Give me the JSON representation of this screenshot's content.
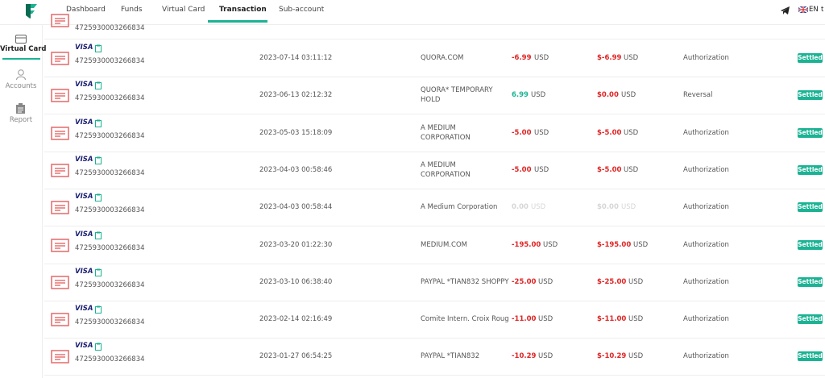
{
  "nav": {
    "tabs": [
      "Dashboard",
      "Funds",
      "Virtual Card",
      "Transaction",
      "Sub-account"
    ],
    "active_tab": 3,
    "language": "EN",
    "user": "t"
  },
  "sidebar": {
    "items": [
      "Virtual Card",
      "Accounts",
      "Report"
    ],
    "active_item": 0
  },
  "table": {
    "partial_row": {
      "card_number": "4725930003266834"
    },
    "rows": [
      {
        "brand": "VISA",
        "card_number": "4725930003266834",
        "date": "2023-07-14 03:11:12",
        "merchant": [
          "QUORA.COM"
        ],
        "amount": "-6.99",
        "amount_currency": "USD",
        "amount_color": "#e02424",
        "balance": "$-6.99",
        "balance_currency": "USD",
        "balance_color": "#e02424",
        "type": "Authorization",
        "status": "Settled"
      },
      {
        "brand": "VISA",
        "card_number": "4725930003266834",
        "date": "2023-06-13 02:12:32",
        "merchant": [
          "QUORA* TEMPORARY",
          "HOLD"
        ],
        "amount": "6.99",
        "amount_currency": "USD",
        "amount_color": "#1bb394",
        "balance": "$0.00",
        "balance_currency": "USD",
        "balance_color": "#e02424",
        "type": "Reversal",
        "status": "Settled"
      },
      {
        "brand": "VISA",
        "card_number": "4725930003266834",
        "date": "2023-05-03 15:18:09",
        "merchant": [
          "A MEDIUM",
          "CORPORATION"
        ],
        "amount": "-5.00",
        "amount_currency": "USD",
        "amount_color": "#e02424",
        "balance": "$-5.00",
        "balance_currency": "USD",
        "balance_color": "#e02424",
        "type": "Authorization",
        "status": "Settled"
      },
      {
        "brand": "VISA",
        "card_number": "4725930003266834",
        "date": "2023-04-03 00:58:46",
        "merchant": [
          "A MEDIUM",
          "CORPORATION"
        ],
        "amount": "-5.00",
        "amount_currency": "USD",
        "amount_color": "#e02424",
        "balance": "$-5.00",
        "balance_currency": "USD",
        "balance_color": "#e02424",
        "type": "Authorization",
        "status": "Settled"
      },
      {
        "brand": "VISA",
        "card_number": "4725930003266834",
        "date": "2023-04-03 00:58:44",
        "merchant": [
          "A Medium Corporation"
        ],
        "amount": "0.00",
        "amount_currency": "USD",
        "amount_color": "#d6d6d6",
        "balance": "$0.00",
        "balance_currency": "USD",
        "balance_color": "#d6d6d6",
        "type": "Authorization",
        "status": "Settled"
      },
      {
        "brand": "VISA",
        "card_number": "4725930003266834",
        "date": "2023-03-20 01:22:30",
        "merchant": [
          "MEDIUM.COM"
        ],
        "amount": "-195.00",
        "amount_currency": "USD",
        "amount_color": "#e02424",
        "balance": "$-195.00",
        "balance_currency": "USD",
        "balance_color": "#e02424",
        "type": "Authorization",
        "status": "Settled"
      },
      {
        "brand": "VISA",
        "card_number": "4725930003266834",
        "date": "2023-03-10 06:38:40",
        "merchant": [
          "PAYPAL *TIAN832 SHOPPY"
        ],
        "amount": "-25.00",
        "amount_currency": "USD",
        "amount_color": "#e02424",
        "balance": "$-25.00",
        "balance_currency": "USD",
        "balance_color": "#e02424",
        "type": "Authorization",
        "status": "Settled"
      },
      {
        "brand": "VISA",
        "card_number": "4725930003266834",
        "date": "2023-02-14 02:16:49",
        "merchant": [
          "Comite Intern. Croix Roug"
        ],
        "amount": "-11.00",
        "amount_currency": "USD",
        "amount_color": "#e02424",
        "balance": "$-11.00",
        "balance_currency": "USD",
        "balance_color": "#e02424",
        "type": "Authorization",
        "status": "Settled"
      },
      {
        "brand": "VISA",
        "card_number": "4725930003266834",
        "date": "2023-01-27 06:54:25",
        "merchant": [
          "PAYPAL *TIAN832"
        ],
        "amount": "-10.29",
        "amount_currency": "USD",
        "amount_color": "#e02424",
        "balance": "$-10.29",
        "balance_currency": "USD",
        "balance_color": "#e02424",
        "type": "Authorization",
        "status": "Settled"
      }
    ]
  }
}
